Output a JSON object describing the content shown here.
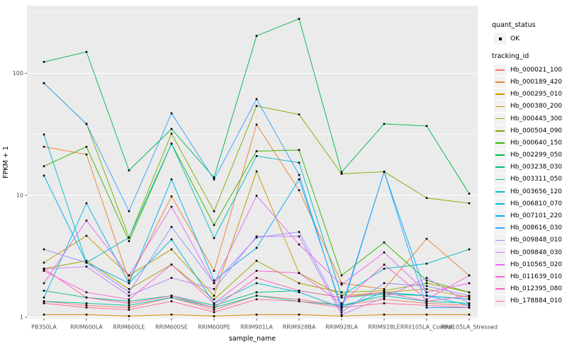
{
  "chart": {
    "y_axis_title": "FPKM + 1",
    "x_axis_title": "sample_name",
    "y_tick_labels": [
      "1",
      "10",
      "100"
    ],
    "panel_background_color": "#EBEBEB",
    "gridline_color": "#FFFFFF",
    "tick_label_color": "#4D4D4D",
    "point_color": "#000000"
  },
  "legend": {
    "quant_status_title": "quant_status",
    "quant_status_items": [
      {
        "label": "OK",
        "marker": "black-point"
      }
    ],
    "tracking_id_title": "tracking_id"
  },
  "chart_data": {
    "type": "line",
    "title": "",
    "xlabel": "sample_name",
    "ylabel": "FPKM + 1",
    "y_scale": "log10",
    "y_ticks": [
      1,
      10,
      100
    ],
    "y_minor_gridlines": [
      3.1623,
      31.623,
      316.23
    ],
    "ylim": [
      0.95,
      360
    ],
    "grid": true,
    "legend_position": "right",
    "point_color": "#000000",
    "categories": [
      "PB350LA",
      "RRIM600LA",
      "RRIM600LE",
      "RRIM600SE",
      "RRIM600PE",
      "RRIM901LA",
      "RRIM928BA",
      "RRIM928LA",
      "RRIM928LE",
      "RRII105LA_Control",
      "RRII105LA_Stressed"
    ],
    "series": [
      {
        "name": "Hb_000021_100",
        "color": "#F8766D",
        "values": [
          1.35,
          1.25,
          1.2,
          1.45,
          1.15,
          1.5,
          1.4,
          1.25,
          1.4,
          1.3,
          1.25
        ]
      },
      {
        "name": "Hb_000189_420",
        "color": "#EA8331",
        "values": [
          25,
          21.6,
          2.0,
          9.8,
          2.4,
          38,
          11,
          1.9,
          1.7,
          4.4,
          2.2
        ]
      },
      {
        "name": "Hb_000295_010",
        "color": "#D89000",
        "values": [
          1.05,
          1.05,
          1.02,
          1.05,
          1.02,
          1.05,
          1.05,
          1.02,
          1.05,
          1.05,
          1.05
        ]
      },
      {
        "name": "Hb_000380_200",
        "color": "#C09B00",
        "values": [
          2.8,
          4.65,
          2.2,
          3.6,
          1.5,
          15.7,
          2.3,
          1.5,
          1.6,
          1.7,
          1.45
        ]
      },
      {
        "name": "Hb_000445_300",
        "color": "#A3A500",
        "values": [
          2.5,
          2.9,
          1.7,
          2.7,
          1.4,
          2.9,
          1.9,
          1.6,
          1.65,
          1.9,
          1.6
        ]
      },
      {
        "name": "Hb_000504_090",
        "color": "#7CAE00",
        "values": [
          83,
          38.5,
          4.5,
          32,
          7.4,
          54,
          46,
          15,
          15.6,
          9.5,
          8.6
        ]
      },
      {
        "name": "Hb_000640_150",
        "color": "#39B600",
        "values": [
          17.3,
          25,
          4.2,
          26.5,
          5.7,
          23,
          23.5,
          2.2,
          4.1,
          2.0,
          1.6
        ]
      },
      {
        "name": "Hb_002299_050",
        "color": "#00BB4E",
        "values": [
          124,
          150,
          16,
          35,
          14,
          203,
          280,
          15.5,
          38.5,
          37,
          10.3
        ]
      },
      {
        "name": "Hb_003238_030",
        "color": "#00BF7D",
        "values": [
          1.65,
          1.45,
          1.35,
          1.5,
          1.25,
          1.6,
          1.65,
          1.45,
          1.55,
          1.5,
          1.4
        ]
      },
      {
        "name": "Hb_003311_050",
        "color": "#00C1A3",
        "values": [
          1.35,
          1.3,
          1.25,
          1.45,
          1.2,
          1.5,
          1.35,
          1.25,
          1.5,
          1.35,
          1.3
        ]
      },
      {
        "name": "Hb_003656_120",
        "color": "#00BFC4",
        "values": [
          31.5,
          2.8,
          4.5,
          26.5,
          4.45,
          21,
          18.5,
          1.5,
          2.5,
          2.75,
          3.6
        ]
      },
      {
        "name": "Hb_006810_070",
        "color": "#00BAE0",
        "values": [
          1.45,
          8.6,
          1.9,
          4.35,
          1.3,
          1.9,
          1.6,
          1.2,
          1.6,
          1.5,
          1.4
        ]
      },
      {
        "name": "Hb_007101_220",
        "color": "#00B0F6",
        "values": [
          14.5,
          2.8,
          1.9,
          13.5,
          2.0,
          3.7,
          13.5,
          1.2,
          15.6,
          1.5,
          1.25
        ]
      },
      {
        "name": "Hb_008616_030",
        "color": "#35A2FF",
        "values": [
          83,
          38.5,
          7.4,
          47,
          13.5,
          61.5,
          14.7,
          1.15,
          15.6,
          1.2,
          1.2
        ]
      },
      {
        "name": "Hb_009848_010",
        "color": "#9590FF",
        "values": [
          3.6,
          2.8,
          1.6,
          5.5,
          1.9,
          4.5,
          5.0,
          1.1,
          1.9,
          1.8,
          1.5
        ]
      },
      {
        "name": "Hb_009848_030",
        "color": "#C77CFF",
        "values": [
          2.48,
          2.6,
          1.5,
          2.1,
          1.7,
          4.6,
          4.6,
          1.05,
          1.45,
          2.1,
          1.3
        ]
      },
      {
        "name": "Hb_010565_020",
        "color": "#E76BF3",
        "values": [
          1.9,
          6.2,
          2.2,
          8.05,
          1.9,
          9.9,
          3.95,
          1.85,
          3.4,
          1.6,
          1.9
        ]
      },
      {
        "name": "Hb_011639_010",
        "color": "#FA62DB",
        "values": [
          2.4,
          1.6,
          1.4,
          2.7,
          1.3,
          2.4,
          2.3,
          1.3,
          2.7,
          1.4,
          2.2
        ]
      },
      {
        "name": "Hb_012395_080",
        "color": "#FF62BC",
        "values": [
          2.5,
          1.45,
          1.3,
          1.5,
          1.2,
          2.1,
          1.65,
          1.45,
          1.6,
          1.35,
          1.5
        ]
      },
      {
        "name": "Hb_178884_010",
        "color": "#FF6A98",
        "values": [
          1.3,
          1.2,
          1.15,
          1.35,
          1.1,
          1.4,
          1.35,
          1.2,
          1.3,
          1.25,
          1.2
        ]
      }
    ]
  }
}
